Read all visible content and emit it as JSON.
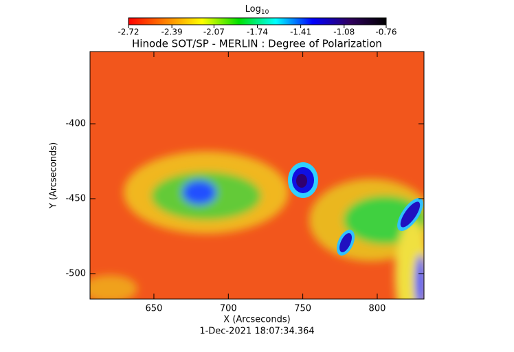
{
  "chart_data": {
    "type": "image",
    "title": "Hinode SOT/SP - MERLIN : Degree of Polarization",
    "x_label": "X (Arcseconds)",
    "y_label": "Y (Arcseconds)",
    "footer": "1-Dec-2021 18:07:34.364",
    "xlim": [
      607.1,
      831.4
    ],
    "xticks": [
      650,
      700,
      750,
      800
    ],
    "ylim": [
      -517,
      -351.8
    ],
    "yticks": [
      -400,
      -450,
      -500
    ],
    "colorbar_label": "Log",
    "colorbar_label_sub": "10",
    "colorbar_lim": [
      -2.72,
      -0.76
    ],
    "colorbar_ticks": [
      -2.72,
      -2.39,
      -2.07,
      -1.74,
      -1.41,
      -1.08,
      -0.76
    ],
    "colormap": [
      "#ff0000",
      "#ff8000",
      "#ffff00",
      "#00e000",
      "#00ffff",
      "#0000ff",
      "#300060",
      "#000000"
    ]
  }
}
